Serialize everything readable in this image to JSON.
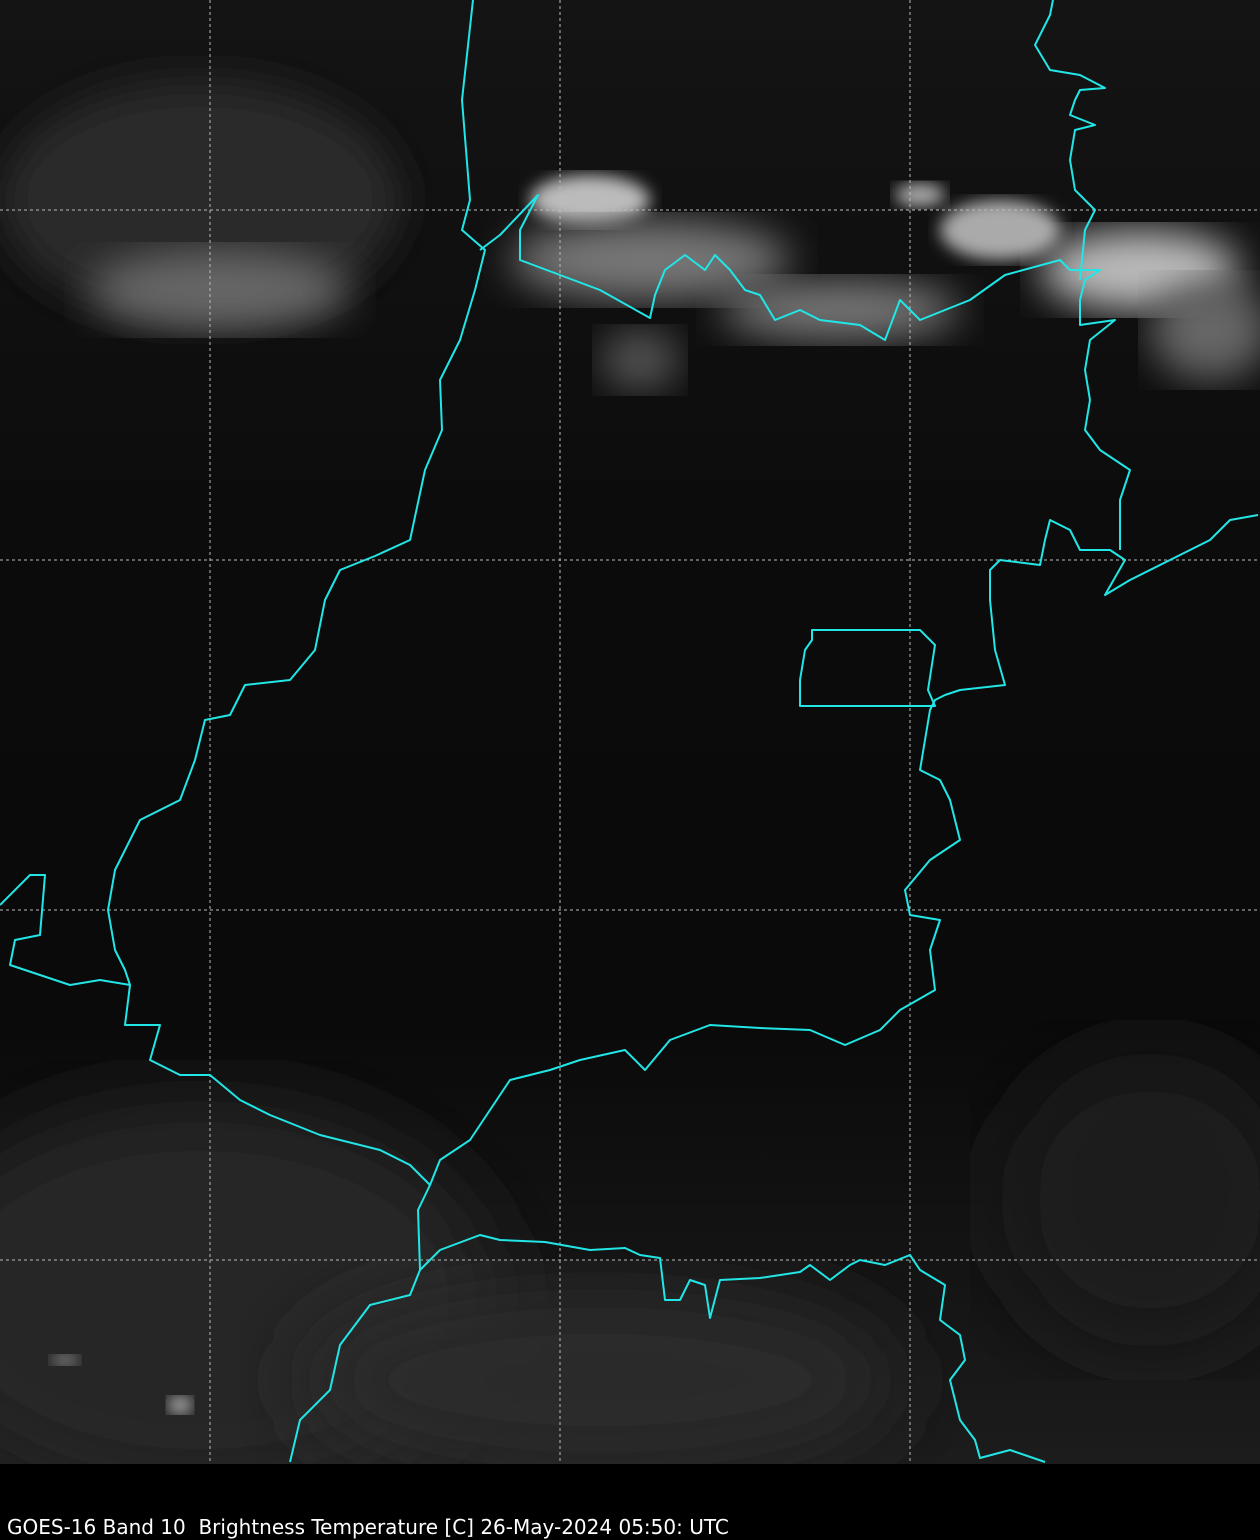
{
  "map": {
    "caption": "GOES-16 Band 10  Brightness Temperature [C] 26-May-2024 05:50: UTC",
    "colors": {
      "boundaries": "#22e6e6",
      "gridlines": "#bbbbbb",
      "background": "#000000"
    },
    "colormap": "grayscale",
    "gridlines": "dashed"
  }
}
